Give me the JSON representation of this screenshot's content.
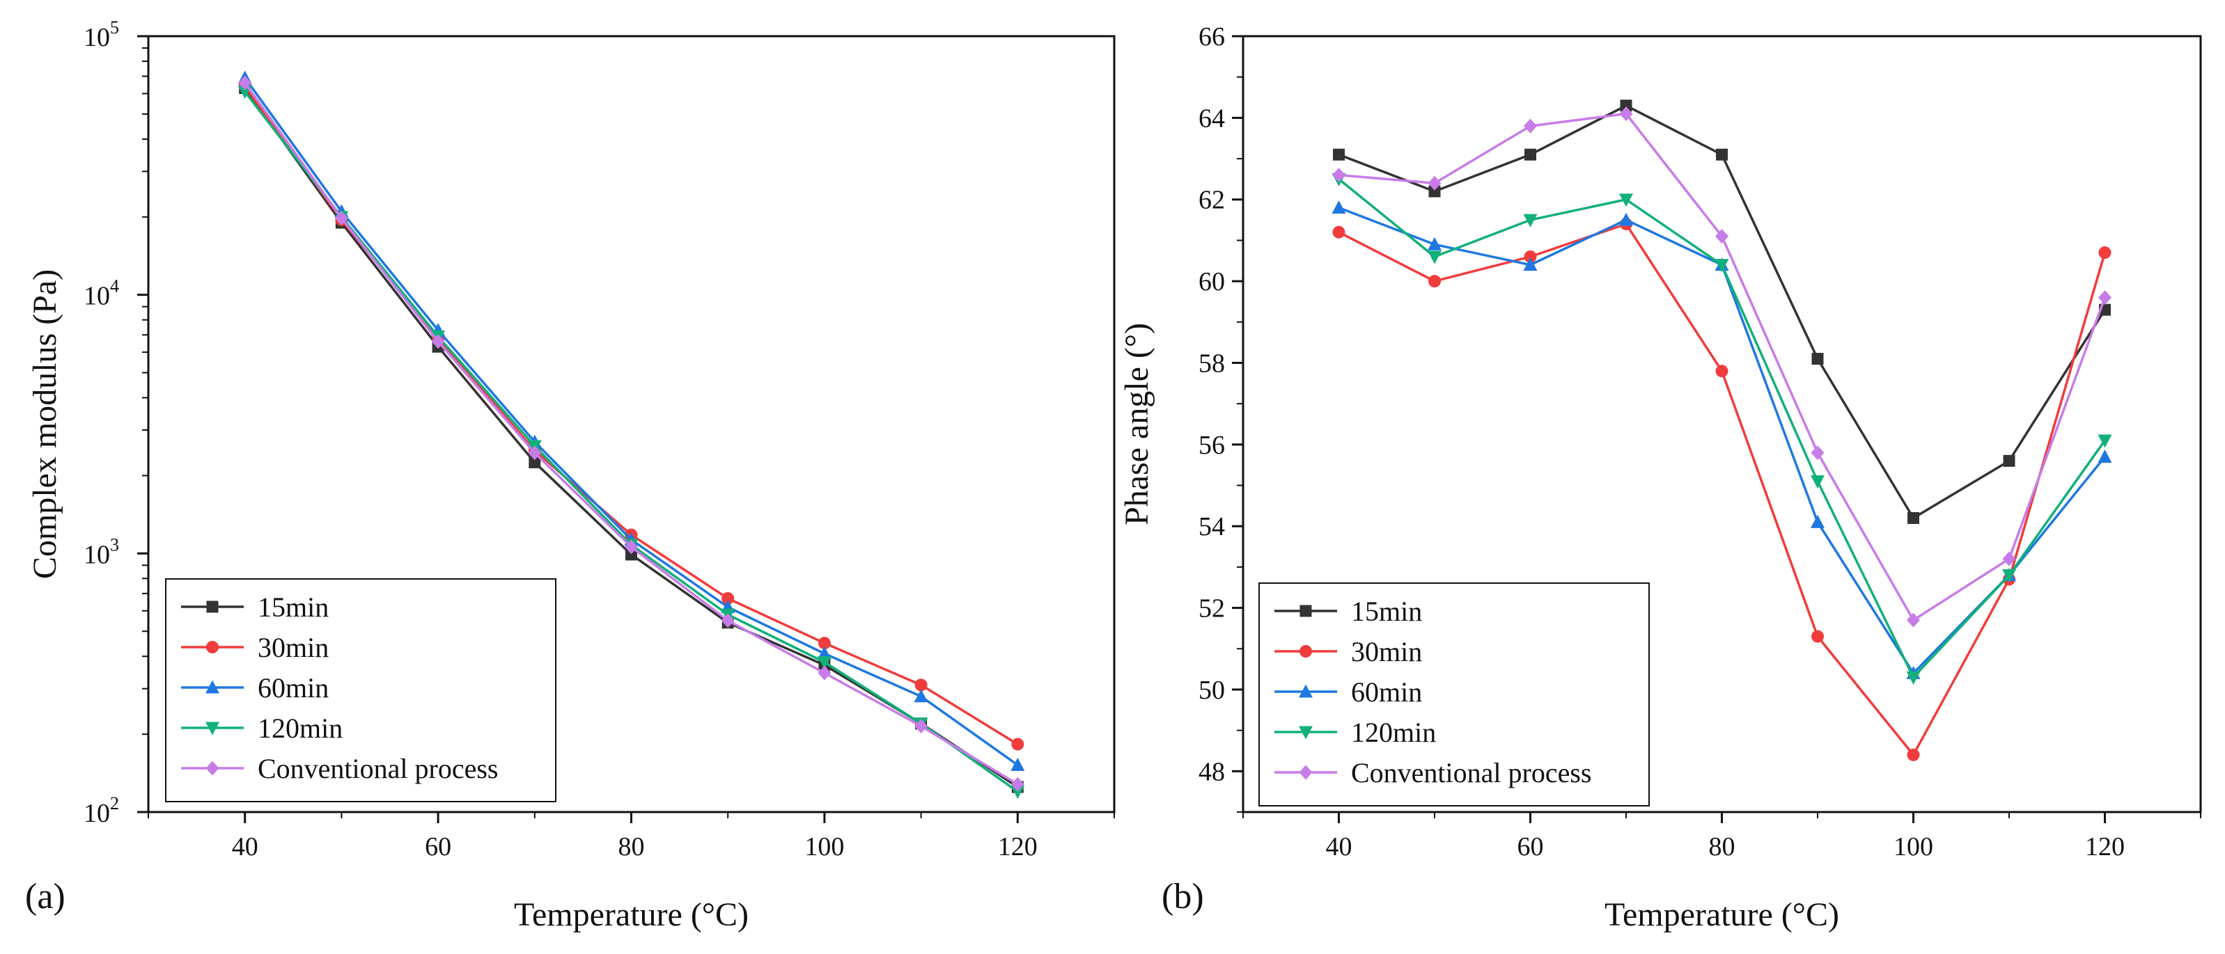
{
  "chart_data": [
    {
      "type": "line",
      "panel_label": "(a)",
      "title": "",
      "xlabel": "Temperature (°C)",
      "ylabel": "Complex modulus (Pa)",
      "xlim": [
        30,
        130
      ],
      "ylim": [
        100,
        100000
      ],
      "yscale": "log",
      "x_ticks": [
        40,
        60,
        80,
        100,
        120
      ],
      "y_ticks": [
        {
          "value": 100,
          "base": "10",
          "exp": "2"
        },
        {
          "value": 1000,
          "base": "10",
          "exp": "3"
        },
        {
          "value": 10000,
          "base": "10",
          "exp": "4"
        },
        {
          "value": 100000,
          "base": "10",
          "exp": "5"
        }
      ],
      "legend_position": "bottom-left",
      "x": [
        40,
        50,
        60,
        70,
        80,
        90,
        100,
        110,
        120
      ],
      "series": [
        {
          "name": "15min",
          "color": "#333333",
          "marker": "square",
          "values": [
            63000,
            19000,
            6300,
            2250,
            990,
            540,
            370,
            220,
            125
          ]
        },
        {
          "name": "30min",
          "color": "#f03c3c",
          "marker": "circle",
          "values": [
            64000,
            19500,
            6800,
            2500,
            1180,
            670,
            450,
            310,
            183
          ]
        },
        {
          "name": "60min",
          "color": "#1f78e0",
          "marker": "triangle-up",
          "values": [
            69000,
            21000,
            7300,
            2700,
            1130,
            620,
            410,
            280,
            152
          ]
        },
        {
          "name": "120min",
          "color": "#12b07a",
          "marker": "triangle-down",
          "values": [
            61000,
            20000,
            6900,
            2600,
            1080,
            580,
            380,
            220,
            120
          ]
        },
        {
          "name": "Conventional process",
          "color": "#c77ce8",
          "marker": "diamond",
          "values": [
            66000,
            19800,
            6600,
            2450,
            1060,
            550,
            345,
            215,
            128
          ]
        }
      ]
    },
    {
      "type": "line",
      "panel_label": "(b)",
      "title": "",
      "xlabel": "Temperature (°C)",
      "ylabel": "Phase angle (°)",
      "xlim": [
        30,
        130
      ],
      "ylim": [
        47,
        66
      ],
      "yscale": "linear",
      "x_ticks": [
        40,
        60,
        80,
        100,
        120
      ],
      "y_ticks": [
        48,
        50,
        52,
        54,
        56,
        58,
        60,
        62,
        64,
        66
      ],
      "legend_position": "bottom-left",
      "x": [
        40,
        50,
        60,
        70,
        80,
        90,
        100,
        110,
        120
      ],
      "series": [
        {
          "name": "15min",
          "color": "#333333",
          "marker": "square",
          "values": [
            63.1,
            62.2,
            63.1,
            64.3,
            63.1,
            58.1,
            54.2,
            55.6,
            59.3
          ]
        },
        {
          "name": "30min",
          "color": "#f03c3c",
          "marker": "circle",
          "values": [
            61.2,
            60.0,
            60.6,
            61.4,
            57.8,
            51.3,
            48.4,
            52.7,
            60.7
          ]
        },
        {
          "name": "60min",
          "color": "#1f78e0",
          "marker": "triangle-up",
          "values": [
            61.8,
            60.9,
            60.4,
            61.5,
            60.4,
            54.1,
            50.4,
            52.8,
            55.7
          ]
        },
        {
          "name": "120min",
          "color": "#12b07a",
          "marker": "triangle-down",
          "values": [
            62.5,
            60.6,
            61.5,
            62.0,
            60.4,
            55.1,
            50.3,
            52.8,
            56.1
          ]
        },
        {
          "name": "Conventional process",
          "color": "#c77ce8",
          "marker": "diamond",
          "values": [
            62.6,
            62.4,
            63.8,
            64.1,
            61.1,
            55.8,
            51.7,
            53.2,
            59.6
          ]
        }
      ]
    }
  ]
}
